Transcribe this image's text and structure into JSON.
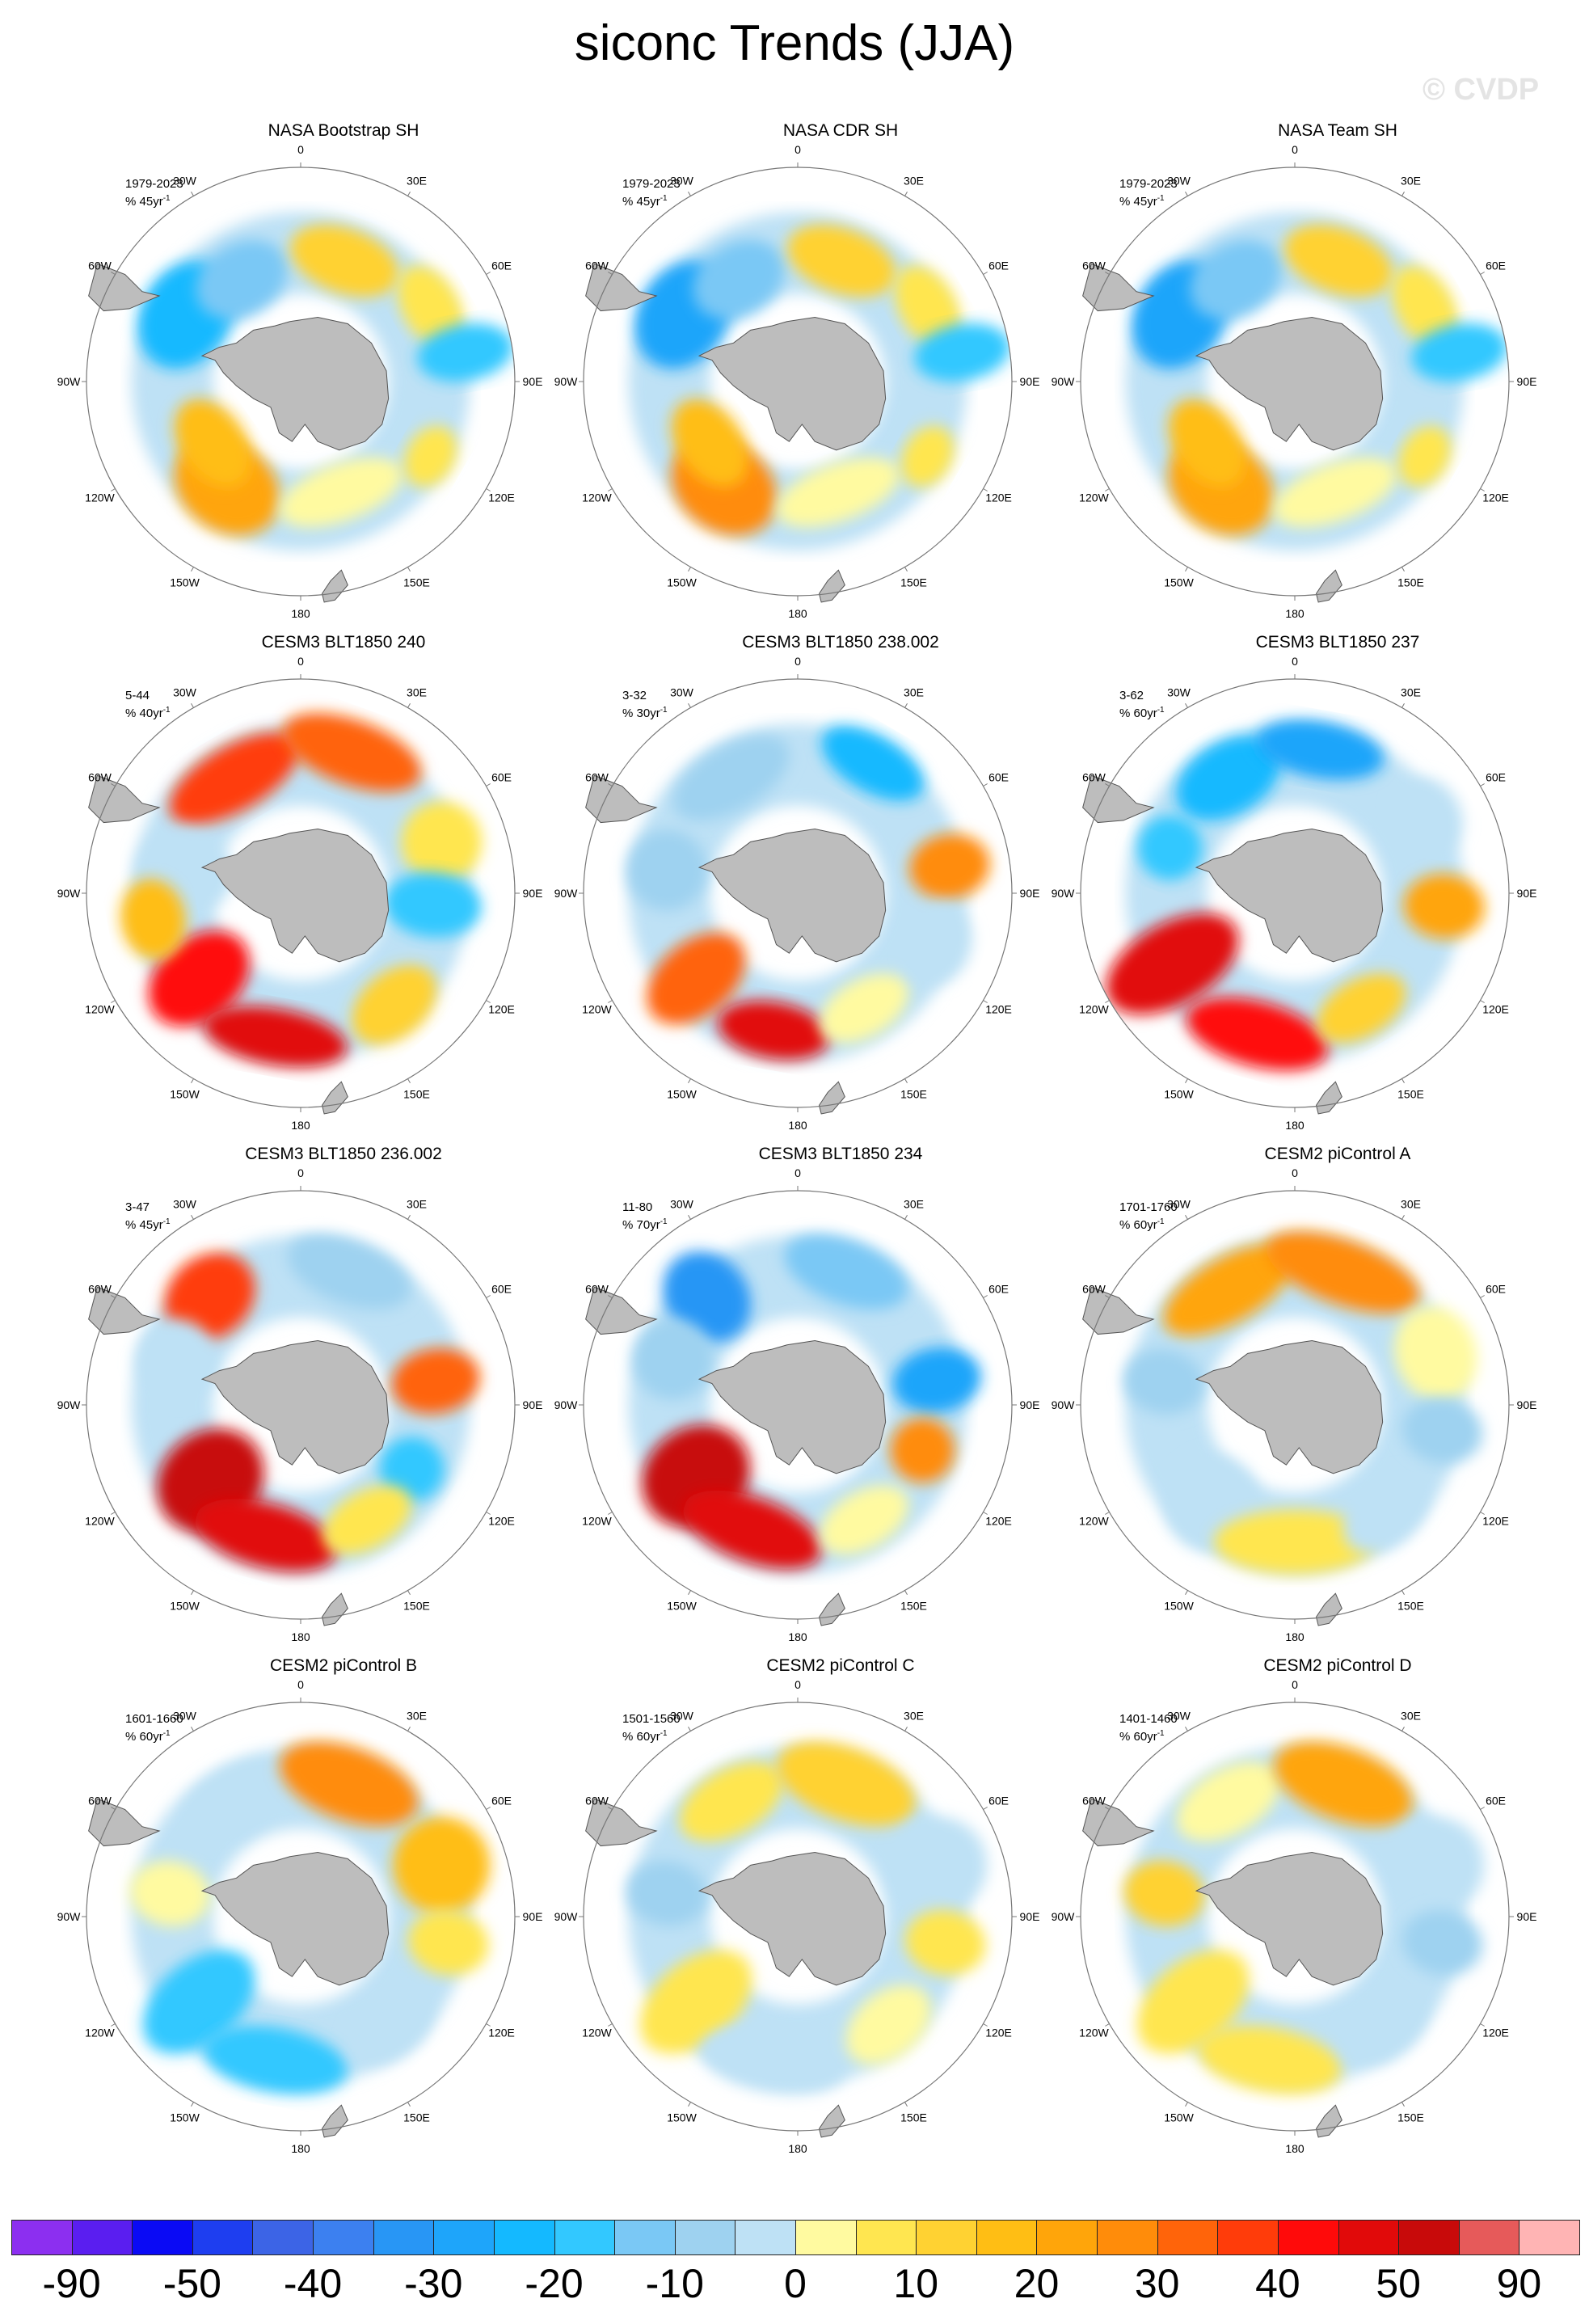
{
  "title": "siconc Trends (JJA)",
  "watermark": "© CVDP",
  "panels": [
    {
      "title": "NASA Bootstrap SH",
      "period": "1979-2023",
      "units": "% 45yr"
    },
    {
      "title": "NASA CDR SH",
      "period": "1979-2023",
      "units": "% 45yr"
    },
    {
      "title": "NASA Team SH",
      "period": "1979-2023",
      "units": "% 45yr"
    },
    {
      "title": "CESM3 BLT1850 240",
      "period": "5-44",
      "units": "% 40yr"
    },
    {
      "title": "CESM3 BLT1850 238.002",
      "period": "3-32",
      "units": "% 30yr"
    },
    {
      "title": "CESM3 BLT1850 237",
      "period": "3-62",
      "units": "% 60yr"
    },
    {
      "title": "CESM3 BLT1850 236.002",
      "period": "3-47",
      "units": "% 45yr"
    },
    {
      "title": "CESM3 BLT1850 234",
      "period": "11-80",
      "units": "% 70yr"
    },
    {
      "title": "CESM2 piControl A",
      "period": "1701-1760",
      "units": "% 60yr"
    },
    {
      "title": "CESM2 piControl B",
      "period": "1601-1660",
      "units": "% 60yr"
    },
    {
      "title": "CESM2 piControl C",
      "period": "1501-1560",
      "units": "% 60yr"
    },
    {
      "title": "CESM2 piControl D",
      "period": "1401-1460",
      "units": "% 60yr"
    }
  ],
  "units_superscript": "-1",
  "longitude_labels": [
    "0",
    "30E",
    "60E",
    "90E",
    "120E",
    "150E",
    "180",
    "150W",
    "120W",
    "90W",
    "60W",
    "30W"
  ],
  "colorbar": {
    "colors": [
      "#8c2ff0",
      "#5a1ef0",
      "#0a0af5",
      "#1e3ef0",
      "#3c64e6",
      "#3c80f0",
      "#2896f5",
      "#1ea5fa",
      "#14b9ff",
      "#32c8ff",
      "#7ac8f5",
      "#9ed2f0",
      "#bee1f5",
      "#fffaa0",
      "#ffe650",
      "#ffd232",
      "#ffbe14",
      "#ffa50a",
      "#ff8c0a",
      "#ff640a",
      "#ff3c0a",
      "#ff0a0a",
      "#e10a0a",
      "#c80a0a",
      "#e65a5a",
      "#ffb4b4"
    ],
    "labels": [
      "-90",
      "-50",
      "-40",
      "-30",
      "-20",
      "-10",
      "0",
      "10",
      "20",
      "30",
      "40",
      "50",
      "90"
    ]
  },
  "chart_data": {
    "type": "heatmap",
    "title": "siconc Trends (JJA)",
    "projection": "south polar stereographic",
    "variable": "siconc",
    "season": "JJA",
    "legend_placement": "bottom",
    "colorbar_levels": [
      -90,
      -50,
      -40,
      -30,
      -20,
      -10,
      0,
      10,
      20,
      30,
      40,
      50,
      90
    ],
    "colorbar_bins": 26,
    "panels": [
      {
        "name": "NASA Bootstrap SH",
        "period": "1979-2023",
        "units": "% 45yr-1"
      },
      {
        "name": "NASA CDR SH",
        "period": "1979-2023",
        "units": "% 45yr-1"
      },
      {
        "name": "NASA Team SH",
        "period": "1979-2023",
        "units": "% 45yr-1"
      },
      {
        "name": "CESM3 BLT1850 240",
        "period": "5-44",
        "units": "% 40yr-1"
      },
      {
        "name": "CESM3 BLT1850 238.002",
        "period": "3-32",
        "units": "% 30yr-1"
      },
      {
        "name": "CESM3 BLT1850 237",
        "period": "3-62",
        "units": "% 60yr-1"
      },
      {
        "name": "CESM3 BLT1850 236.002",
        "period": "3-47",
        "units": "% 45yr-1"
      },
      {
        "name": "CESM3 BLT1850 234",
        "period": "11-80",
        "units": "% 70yr-1"
      },
      {
        "name": "CESM2 piControl A",
        "period": "1701-1760",
        "units": "% 60yr-1"
      },
      {
        "name": "CESM2 piControl B",
        "period": "1601-1660",
        "units": "% 60yr-1"
      },
      {
        "name": "CESM2 piControl C",
        "period": "1501-1560",
        "units": "% 60yr-1"
      },
      {
        "name": "CESM2 piControl D",
        "period": "1401-1460",
        "units": "% 60yr-1"
      }
    ]
  }
}
